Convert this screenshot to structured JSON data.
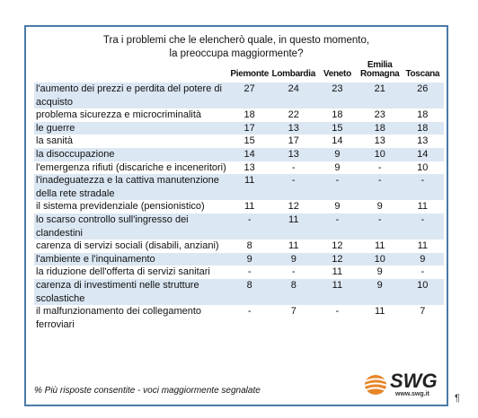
{
  "title": [
    "Tra i problemi che le elencherò quale, in questo momento,",
    "la preoccupa maggiormente?"
  ],
  "table": {
    "columns": [
      "Piemonte",
      "Lombardia",
      "Veneto",
      "Emilia Romagna",
      "Toscana"
    ],
    "rows": [
      {
        "label": "l'aumento dei prezzi e perdita del potere di acquisto",
        "values": [
          27,
          24,
          23,
          21,
          26
        ]
      },
      {
        "label": "problema sicurezza e microcriminalità",
        "values": [
          18,
          22,
          18,
          23,
          18
        ]
      },
      {
        "label": "le guerre",
        "values": [
          17,
          13,
          15,
          18,
          18
        ]
      },
      {
        "label": "la sanità",
        "values": [
          15,
          17,
          14,
          13,
          13
        ]
      },
      {
        "label": "la disoccupazione",
        "values": [
          14,
          13,
          9,
          10,
          14
        ]
      },
      {
        "label": "l'emergenza rifiuti (discariche e inceneritori)",
        "values": [
          13,
          "-",
          9,
          "-",
          10
        ]
      },
      {
        "label": "l'inadeguatezza e la cattiva manutenzione della rete stradale",
        "values": [
          11,
          "-",
          "-",
          "-",
          "-"
        ]
      },
      {
        "label": "il sistema previdenziale (pensionistico)",
        "values": [
          11,
          12,
          9,
          9,
          11
        ]
      },
      {
        "label": "lo scarso controllo sull'ingresso dei clandestini",
        "values": [
          "-",
          11,
          "-",
          "-",
          "-"
        ]
      },
      {
        "label": "carenza di servizi sociali (disabili, anziani)",
        "values": [
          8,
          11,
          12,
          11,
          11
        ]
      },
      {
        "label": "l'ambiente e l'inquinamento",
        "values": [
          9,
          9,
          12,
          10,
          9
        ]
      },
      {
        "label": "la riduzione dell'offerta di servizi sanitari",
        "values": [
          "-",
          "-",
          11,
          9,
          "-"
        ]
      },
      {
        "label": "carenza di investimenti nelle strutture scolastiche",
        "values": [
          8,
          8,
          11,
          9,
          10
        ]
      },
      {
        "label": "il malfunzionamento dei collegamento ferroviari",
        "values": [
          "-",
          7,
          "-",
          11,
          7
        ]
      }
    ]
  },
  "footer": {
    "note": "% Più risposte consentite - voci maggiormente segnalate",
    "logo": "SWG",
    "url": "www.swg.it",
    "mark": "¶"
  }
}
